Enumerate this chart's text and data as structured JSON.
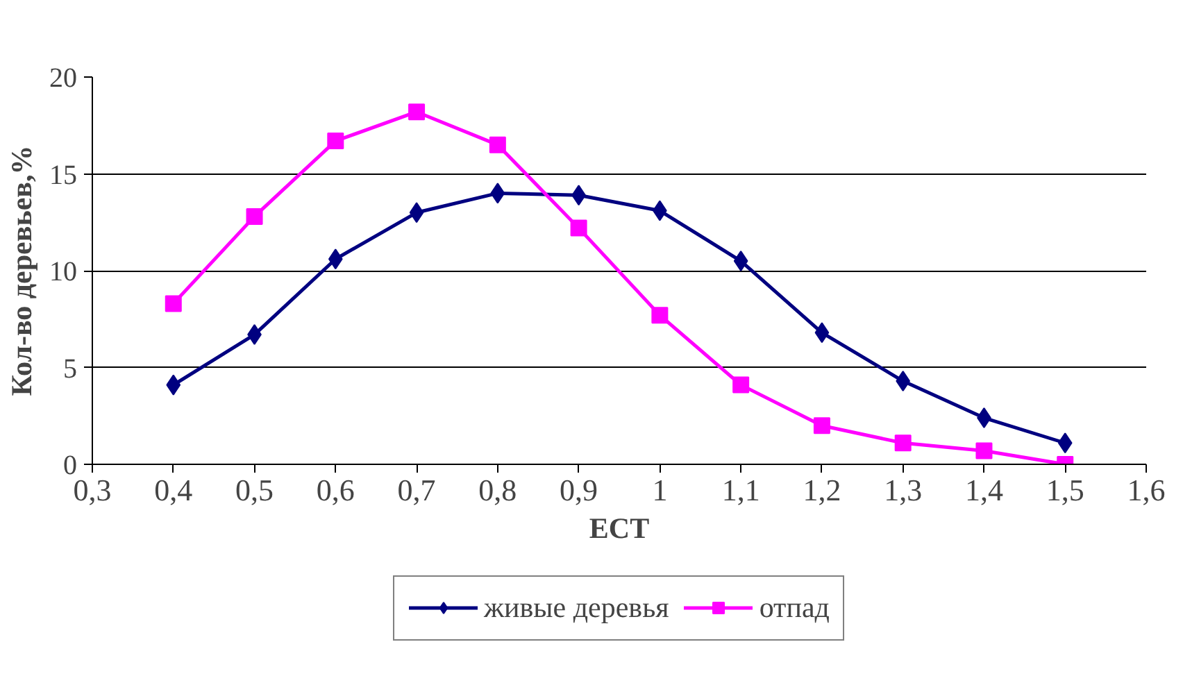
{
  "chart_data": {
    "type": "line",
    "xlabel": "ECT",
    "ylabel": "Кол-во деревьев,%",
    "x": [
      0.4,
      0.5,
      0.6,
      0.7,
      0.8,
      0.9,
      1.0,
      1.1,
      1.2,
      1.3,
      1.4,
      1.5
    ],
    "xlim": [
      0.3,
      1.6
    ],
    "xticks": [
      {
        "value": 0.3,
        "label": "0,3"
      },
      {
        "value": 0.4,
        "label": "0,4"
      },
      {
        "value": 0.5,
        "label": "0,5"
      },
      {
        "value": 0.6,
        "label": "0,6"
      },
      {
        "value": 0.7,
        "label": "0,7"
      },
      {
        "value": 0.8,
        "label": "0,8"
      },
      {
        "value": 0.9,
        "label": "0,9"
      },
      {
        "value": 1,
        "label": "1"
      },
      {
        "value": 1.1,
        "label": "1,1"
      },
      {
        "value": 1.2,
        "label": "1,2"
      },
      {
        "value": 1.3,
        "label": "1,3"
      },
      {
        "value": 1.4,
        "label": "1,4"
      },
      {
        "value": 1.5,
        "label": "1,5"
      },
      {
        "value": 1.6,
        "label": "1,6"
      }
    ],
    "ylim": [
      0,
      20
    ],
    "yticks": [
      0,
      5,
      10,
      15,
      20
    ],
    "grid": "y",
    "legend": "bottom",
    "series": [
      {
        "name": "живые деревья",
        "color": "#000080",
        "marker": "diamond",
        "values": [
          4.1,
          6.7,
          10.6,
          13.0,
          14.0,
          13.9,
          13.1,
          10.5,
          6.8,
          4.3,
          2.4,
          1.1
        ]
      },
      {
        "name": "отпад",
        "color": "#ff00ff",
        "marker": "square",
        "values": [
          8.3,
          12.8,
          16.7,
          18.2,
          16.5,
          12.2,
          7.7,
          4.1,
          2.0,
          1.1,
          0.7,
          0.0
        ]
      }
    ]
  }
}
